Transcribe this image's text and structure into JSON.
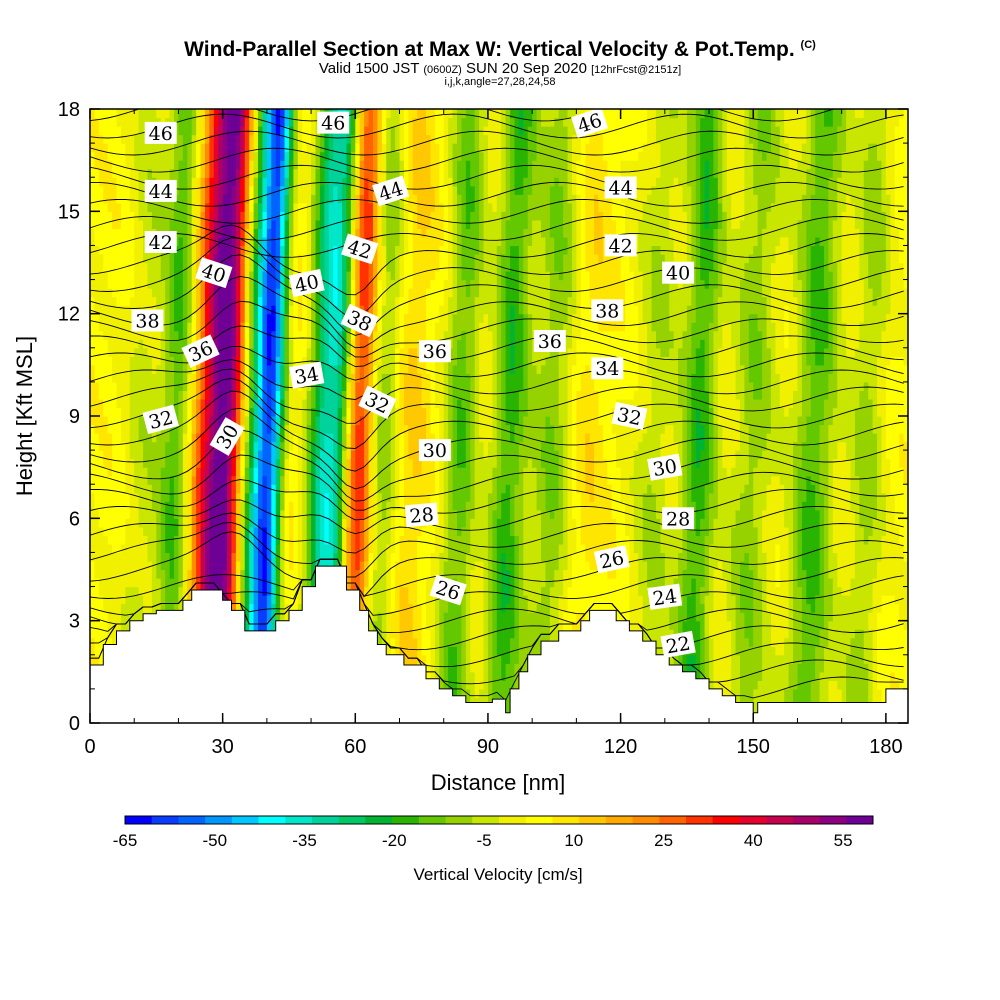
{
  "title": {
    "main": "Wind-Parallel Section at Max W: Vertical Velocity & Pot.Temp.",
    "copyright": "(C)",
    "valid_prefix": "Valid 1500 JST",
    "valid_utc": "(0600Z)",
    "valid_date": "SUN 20 Sep 2020",
    "forecast": "[12hrFcst@2151z]",
    "indices": "i,j,k,angle=27,28,24,58"
  },
  "chart_data": {
    "type": "heatmap",
    "description_fields": "vertical velocity shading with potential temperature contours",
    "xlabel": "Distance [nm]",
    "ylabel": "Height [Kft MSL]",
    "xlim": [
      0,
      185
    ],
    "ylim": [
      0,
      18
    ],
    "x_ticks": [
      0,
      30,
      60,
      90,
      120,
      150,
      180
    ],
    "y_ticks": [
      0,
      3,
      6,
      9,
      12,
      15,
      18
    ],
    "colorbar": {
      "label": "Vertical Velocity [cm/s]",
      "tick_labels": [
        "-65",
        "-50",
        "-35",
        "-20",
        "-5",
        "10",
        "25",
        "40",
        "55"
      ],
      "colors": [
        "#0000ff",
        "#0a3cff",
        "#0064ff",
        "#0096ff",
        "#00c8ff",
        "#00ffff",
        "#00e6c8",
        "#00d29b",
        "#00c864",
        "#00b432",
        "#28b400",
        "#64c800",
        "#96d200",
        "#c8e600",
        "#f0f000",
        "#ffff00",
        "#ffe600",
        "#ffc800",
        "#ffaa00",
        "#ff8c00",
        "#ff6400",
        "#ff3200",
        "#ff0000",
        "#e6002d",
        "#c80050",
        "#aa0069",
        "#8c0082",
        "#6e0096"
      ]
    },
    "terrain_profile": {
      "x": [
        0,
        3,
        3,
        6,
        6,
        9,
        9,
        12,
        12,
        15,
        15,
        18,
        18,
        21,
        21,
        23,
        23,
        27,
        27,
        30,
        30,
        32,
        32,
        35,
        35,
        42,
        42,
        45,
        45,
        48,
        48,
        51,
        51,
        58,
        58,
        61,
        61,
        63,
        63,
        65,
        65,
        67,
        67,
        71,
        71,
        76,
        76,
        79,
        79,
        82,
        82,
        85,
        85,
        88,
        88,
        91,
        91,
        94,
        94,
        95,
        95,
        97,
        97,
        99,
        99,
        102,
        102,
        106,
        106,
        110,
        110,
        111,
        111,
        113,
        113,
        119,
        119,
        122,
        122,
        125,
        125,
        128,
        128,
        131,
        131,
        134,
        134,
        137,
        137,
        140,
        140,
        143,
        143,
        146,
        146,
        150,
        150,
        151,
        151,
        153,
        153,
        156,
        156,
        180,
        180,
        185
      ],
      "height": [
        1.7,
        1.7,
        2.3,
        2.3,
        2.7,
        2.7,
        3.0,
        3.0,
        3.2,
        3.2,
        3.3,
        3.3,
        3.3,
        3.3,
        3.6,
        3.6,
        3.9,
        3.9,
        3.9,
        3.9,
        3.6,
        3.6,
        3.3,
        3.3,
        2.7,
        2.7,
        3.0,
        3.0,
        3.3,
        3.3,
        4.0,
        4.0,
        4.6,
        4.6,
        3.9,
        3.9,
        3.3,
        3.3,
        2.7,
        2.7,
        2.3,
        2.3,
        2.0,
        2.0,
        1.7,
        1.7,
        1.3,
        1.3,
        1.0,
        1.0,
        0.8,
        0.8,
        0.6,
        0.6,
        0.6,
        0.6,
        0.7,
        0.7,
        0.3,
        0.3,
        1.0,
        1.0,
        1.5,
        1.5,
        2.0,
        2.0,
        2.4,
        2.4,
        2.7,
        2.7,
        2.7,
        2.7,
        3.0,
        3.0,
        3.3,
        3.3,
        3.0,
        3.0,
        2.7,
        2.7,
        2.4,
        2.4,
        2.0,
        2.0,
        1.7,
        1.7,
        1.5,
        1.5,
        1.3,
        1.3,
        1.0,
        1.0,
        0.8,
        0.8,
        0.6,
        0.6,
        0.3,
        0.3,
        0.6,
        0.6,
        0.6,
        0.6,
        0.6,
        0.6,
        1.0,
        1.0
      ]
    },
    "updraft_bands": [
      {
        "x": 12,
        "v": -8,
        "width": 4
      },
      {
        "x": 20,
        "v": -22,
        "width": 4
      },
      {
        "x": 27,
        "v": 28,
        "width": 5
      },
      {
        "x": 31,
        "v": 40,
        "width": 4
      },
      {
        "x": 38,
        "v": -30,
        "width": 4
      },
      {
        "x": 41,
        "v": -45,
        "width": 3
      },
      {
        "x": 47,
        "v": 5,
        "width": 5
      },
      {
        "x": 53,
        "v": -35,
        "width": 4
      },
      {
        "x": 57,
        "v": -25,
        "width": 3
      },
      {
        "x": 61,
        "v": 35,
        "width": 4
      },
      {
        "x": 66,
        "v": -20,
        "width": 4
      },
      {
        "x": 72,
        "v": 8,
        "width": 5
      },
      {
        "x": 84,
        "v": -18,
        "width": 4
      },
      {
        "x": 95,
        "v": -22,
        "width": 4
      },
      {
        "x": 105,
        "v": -15,
        "width": 5
      },
      {
        "x": 112,
        "v": 6,
        "width": 5
      },
      {
        "x": 128,
        "v": -10,
        "width": 5
      },
      {
        "x": 138,
        "v": -22,
        "width": 4
      },
      {
        "x": 150,
        "v": -14,
        "width": 5
      },
      {
        "x": 164,
        "v": -20,
        "width": 5
      },
      {
        "x": 176,
        "v": -12,
        "width": 4
      }
    ],
    "theta_contour_labels": [
      {
        "value": "46",
        "x": 16,
        "y": 17.3,
        "angle": 0
      },
      {
        "value": "46",
        "x": 55,
        "y": 17.6,
        "angle": 0
      },
      {
        "value": "46",
        "x": 113,
        "y": 17.6,
        "angle": -18
      },
      {
        "value": "44",
        "x": 16,
        "y": 15.6,
        "angle": 0
      },
      {
        "value": "44",
        "x": 68,
        "y": 15.6,
        "angle": -18
      },
      {
        "value": "44",
        "x": 120,
        "y": 15.7,
        "angle": 0
      },
      {
        "value": "42",
        "x": 16,
        "y": 14.1,
        "angle": 0
      },
      {
        "value": "42",
        "x": 61,
        "y": 13.9,
        "angle": 18
      },
      {
        "value": "42",
        "x": 120,
        "y": 14.0,
        "angle": 0
      },
      {
        "value": "40",
        "x": 28,
        "y": 13.2,
        "angle": 18
      },
      {
        "value": "40",
        "x": 49,
        "y": 12.9,
        "angle": -12
      },
      {
        "value": "40",
        "x": 133,
        "y": 13.2,
        "angle": 0
      },
      {
        "value": "38",
        "x": 13,
        "y": 11.8,
        "angle": 0
      },
      {
        "value": "38",
        "x": 61,
        "y": 11.8,
        "angle": 25
      },
      {
        "value": "38",
        "x": 117,
        "y": 12.1,
        "angle": 0
      },
      {
        "value": "36",
        "x": 25,
        "y": 10.9,
        "angle": -25
      },
      {
        "value": "36",
        "x": 78,
        "y": 10.9,
        "angle": 0
      },
      {
        "value": "36",
        "x": 104,
        "y": 11.2,
        "angle": 0
      },
      {
        "value": "34",
        "x": 49,
        "y": 10.2,
        "angle": -10
      },
      {
        "value": "34",
        "x": 117,
        "y": 10.4,
        "angle": 0
      },
      {
        "value": "32",
        "x": 16,
        "y": 8.9,
        "angle": -15
      },
      {
        "value": "32",
        "x": 65,
        "y": 9.4,
        "angle": 25
      },
      {
        "value": "32",
        "x": 122,
        "y": 9.0,
        "angle": 12
      },
      {
        "value": "30",
        "x": 31,
        "y": 8.4,
        "angle": -60
      },
      {
        "value": "30",
        "x": 78,
        "y": 8.0,
        "angle": 0
      },
      {
        "value": "30",
        "x": 130,
        "y": 7.5,
        "angle": -10
      },
      {
        "value": "28",
        "x": 75,
        "y": 6.1,
        "angle": -5
      },
      {
        "value": "28",
        "x": 133,
        "y": 6.0,
        "angle": 0
      },
      {
        "value": "26",
        "x": 81,
        "y": 3.9,
        "angle": 18
      },
      {
        "value": "26",
        "x": 118,
        "y": 4.8,
        "angle": -12
      },
      {
        "value": "24",
        "x": 130,
        "y": 3.7,
        "angle": -8
      },
      {
        "value": "22",
        "x": 133,
        "y": 2.3,
        "angle": -10
      }
    ]
  }
}
